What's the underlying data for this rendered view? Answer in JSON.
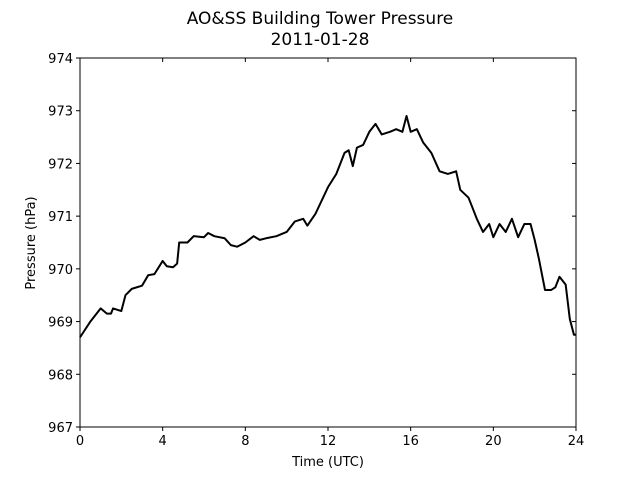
{
  "chart_data": {
    "type": "line",
    "title": "AO&SS Building Tower Pressure",
    "subtitle": "2011-01-28",
    "x_label": "Time (UTC)",
    "y_label": "Pressure (hPa)",
    "xlim": [
      0,
      24
    ],
    "xticks": [
      0,
      4,
      8,
      12,
      16,
      20,
      24
    ],
    "ylim": [
      967,
      974
    ],
    "yticks": [
      967,
      968,
      969,
      970,
      971,
      972,
      973,
      974
    ],
    "series": [
      {
        "color": "#000000",
        "x": [
          0,
          0.5,
          1.0,
          1.3,
          1.5,
          1.6,
          2.0,
          2.2,
          2.5,
          3.0,
          3.3,
          3.6,
          4.0,
          4.2,
          4.5,
          4.7,
          4.8,
          5.2,
          5.5,
          6.0,
          6.2,
          6.5,
          7.0,
          7.3,
          7.6,
          8.0,
          8.4,
          8.7,
          9.0,
          9.5,
          10.0,
          10.4,
          10.8,
          11.0,
          11.4,
          12.0,
          12.4,
          12.8,
          13.0,
          13.2,
          13.4,
          13.7,
          14.0,
          14.3,
          14.6,
          15.0,
          15.3,
          15.6,
          15.8,
          16.0,
          16.3,
          16.6,
          17.0,
          17.4,
          17.8,
          18.2,
          18.4,
          18.8,
          19.2,
          19.5,
          19.8,
          20.0,
          20.3,
          20.6,
          20.9,
          21.2,
          21.5,
          21.8,
          22.0,
          22.2,
          22.5,
          22.8,
          23.0,
          23.2,
          23.5,
          23.7,
          23.9,
          24.0
        ],
        "values": [
          968.7,
          969.0,
          969.25,
          969.15,
          969.15,
          969.25,
          969.2,
          969.5,
          969.62,
          969.68,
          969.88,
          969.9,
          970.15,
          970.05,
          970.03,
          970.1,
          970.5,
          970.5,
          970.62,
          970.6,
          970.68,
          970.62,
          970.58,
          970.45,
          970.42,
          970.5,
          970.62,
          970.55,
          970.58,
          970.62,
          970.7,
          970.9,
          970.95,
          970.82,
          971.05,
          971.55,
          971.8,
          972.2,
          972.25,
          971.95,
          972.3,
          972.35,
          972.6,
          972.75,
          972.55,
          972.6,
          972.65,
          972.6,
          972.9,
          972.6,
          972.65,
          972.4,
          972.2,
          971.85,
          971.8,
          971.85,
          971.5,
          971.35,
          970.95,
          970.7,
          970.85,
          970.6,
          970.85,
          970.7,
          970.95,
          970.6,
          970.85,
          970.85,
          970.55,
          970.2,
          969.6,
          969.6,
          969.65,
          969.85,
          969.7,
          969.05,
          968.75,
          968.75
        ]
      }
    ]
  }
}
